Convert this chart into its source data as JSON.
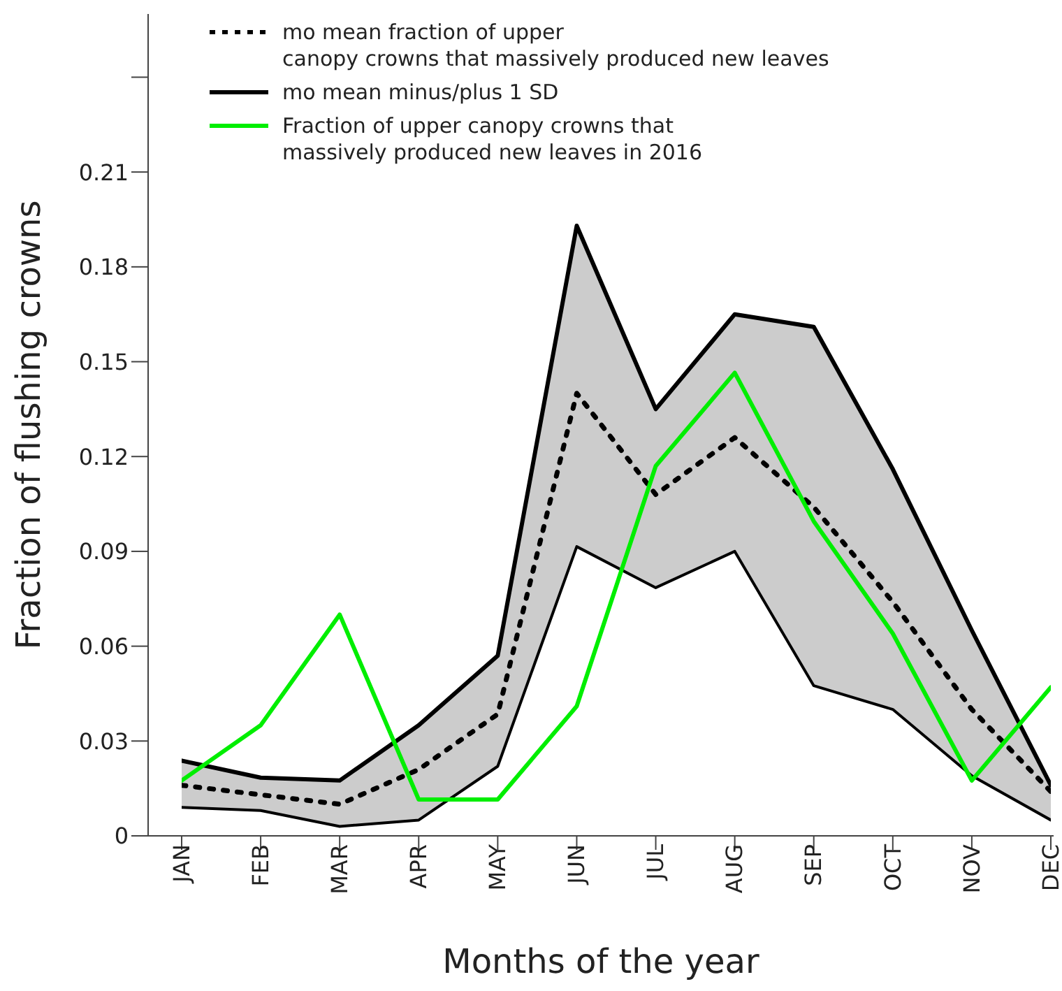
{
  "chart_data": {
    "type": "line",
    "xlabel": "Months of the year",
    "ylabel": "Fraction of flushing crowns",
    "categories": [
      "JAN",
      "FEB",
      "MAR",
      "APR",
      "MAY",
      "JUN",
      "JUL",
      "AUG",
      "SEP",
      "OCT",
      "NOV",
      "DEC"
    ],
    "series": [
      {
        "name": "mo mean fraction of upper\ncanopy crowns that massively produced new leaves",
        "color": "#000000",
        "line_style": "dotted",
        "values": [
          0.016,
          0.013,
          0.01,
          0.021,
          0.0385,
          0.14,
          0.108,
          0.126,
          0.104,
          0.074,
          0.04,
          0.014
        ],
        "lower": [
          0.009,
          0.008,
          0.003,
          0.005,
          0.022,
          0.0915,
          0.0785,
          0.09,
          0.0475,
          0.04,
          0.019,
          0.005
        ],
        "upper": [
          0.0238,
          0.0184,
          0.0175,
          0.035,
          0.057,
          0.193,
          0.135,
          0.165,
          0.161,
          0.116,
          0.065,
          0.016
        ]
      },
      {
        "name": "mo mean minus/plus 1 SD",
        "color": "#000000",
        "line_style": "solid",
        "values": [
          0.0238,
          0.0184,
          0.0175,
          0.035,
          0.057,
          0.193,
          0.135,
          0.165,
          0.161,
          0.116,
          0.065,
          0.016
        ]
      },
      {
        "color": "#000000",
        "line_style": "solid",
        "values": [
          0.009,
          0.008,
          0.003,
          0.005,
          0.022,
          0.0915,
          0.0785,
          0.09,
          0.0475,
          0.04,
          0.019,
          0.005
        ]
      },
      {
        "name": "Fraction of upper canopy crowns that\nmassively produced new leaves in 2016",
        "color": "#00ee00",
        "line_style": "solid",
        "values": [
          0.0175,
          0.035,
          0.07,
          0.0115,
          0.0115,
          0.041,
          0.117,
          0.1465,
          0.0995,
          0.064,
          0.0175,
          0.047
        ]
      }
    ],
    "ylim": [
      0,
      0.26
    ],
    "yticks": [
      0,
      0.03,
      0.06,
      0.09,
      0.12,
      0.15,
      0.18,
      0.21,
      {
        "value": 0.24,
        "label": null
      }
    ],
    "legend": "top left"
  }
}
